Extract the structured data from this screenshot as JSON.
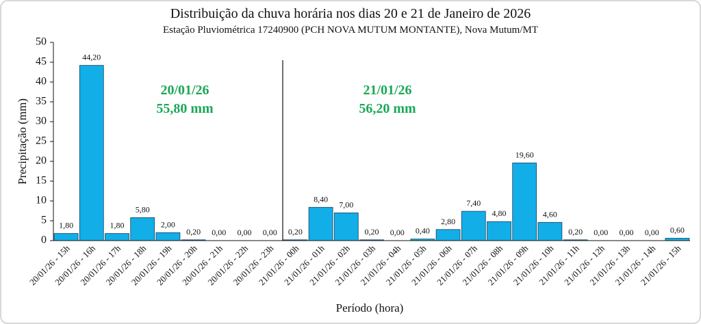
{
  "chart_data": {
    "type": "bar",
    "title": "Distribuição da chuva horária nos dias 20 e 21 de Janeiro de 2026",
    "subtitle": "Estação Pluviométrica 17240900 (PCH NOVA MUTUM MONTANTE), Nova Mutum/MT",
    "x_label": "Período (hora)",
    "y_label": "Precipitação (mm)",
    "categories": [
      "20/01/26 - 15h",
      "20/01/26 - 16h",
      "20/01/26 - 17h",
      "20/01/26 - 18h",
      "20/01/26 - 19h",
      "20/01/26 - 20h",
      "20/01/26 - 21h",
      "20/01/26 - 22h",
      "20/01/26 - 23h",
      "21/01/26 - 00h",
      "21/01/26 - 01h",
      "21/01/26 - 02h",
      "21/01/26 - 03h",
      "21/01/26 - 04h",
      "21/01/26 - 05h",
      "21/01/26 - 06h",
      "21/01/26 - 07h",
      "21/01/26 - 08h",
      "21/01/26 - 09h",
      "21/01/26 - 10h",
      "21/01/26 - 11h",
      "21/01/26 - 12h",
      "21/01/26 - 13h",
      "21/01/26 - 14h",
      "21/01/26 - 15h"
    ],
    "values": [
      1.8,
      44.2,
      1.8,
      5.8,
      2.0,
      0.2,
      0.0,
      0.0,
      0.0,
      0.2,
      8.4,
      7.0,
      0.2,
      0.0,
      0.4,
      2.8,
      7.4,
      4.8,
      19.6,
      4.6,
      0.2,
      0.0,
      0.0,
      0.0,
      0.6
    ],
    "value_labels": [
      "1,80",
      "44,20",
      "1,80",
      "5,80",
      "2,00",
      "0,20",
      "0,00",
      "0,00",
      "0,00",
      "0,20",
      "8,40",
      "7,00",
      "0,20",
      "0,00",
      "0,40",
      "2,80",
      "7,40",
      "4,80",
      "19,60",
      "4,60",
      "0,20",
      "0,00",
      "0,00",
      "0,00",
      "0,60"
    ],
    "color": "#12aee8",
    "ylim": [
      0,
      50
    ],
    "yticks": [
      0,
      5,
      10,
      15,
      20,
      25,
      30,
      35,
      40,
      45,
      50
    ],
    "annotations": [
      "20/01/26",
      "55,80 mm",
      "21/01/26",
      "56,20 mm"
    ]
  }
}
